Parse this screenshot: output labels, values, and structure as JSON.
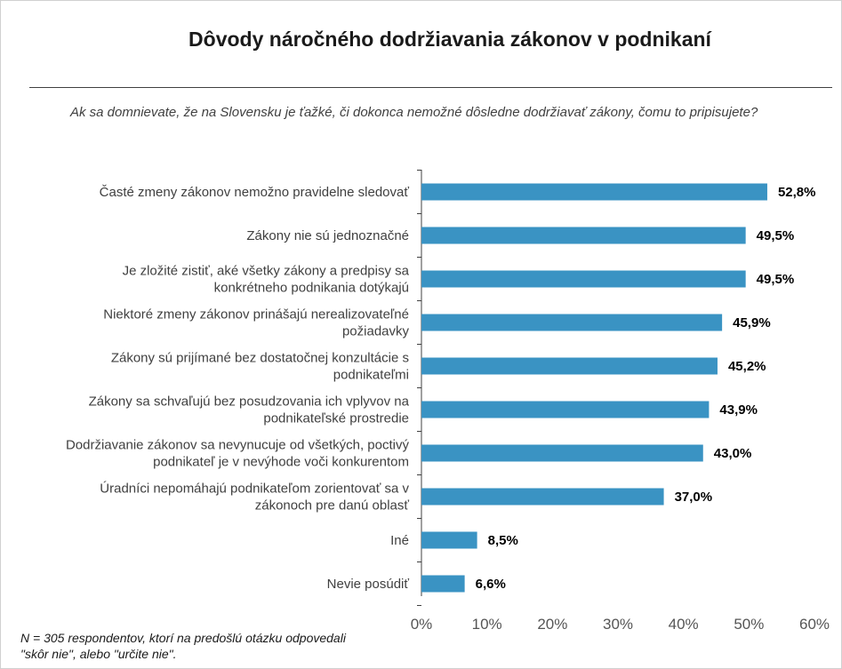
{
  "title": "Dôvody náročného dodržiavania zákonov v podnikaní",
  "subtitle": "Ak sa domnievate, že na Slovensku je ťažké, či dokonca nemožné dôsledne dodržiavať zákony, čomu to pripisujete?",
  "footnote": "N = 305 respondentov, ktorí na predošlú otázku odpovedali \"skôr nie\", alebo \"určite nie\".",
  "colors": {
    "bar": "#3a93c3",
    "axis": "#404040"
  },
  "chart_data": {
    "type": "bar",
    "orientation": "horizontal",
    "categories": [
      [
        "Časté zmeny zákonov nemožno pravidelne sledovať"
      ],
      [
        "Zákony nie sú jednoznačné"
      ],
      [
        "Je zložité zistiť, aké všetky zákony a predpisy sa",
        "konkrétneho podnikania dotýkajú"
      ],
      [
        "Niektoré zmeny zákonov prinášajú nerealizovateľné",
        "požiadavky"
      ],
      [
        "Zákony sú prijímané bez dostatočnej konzultácie s",
        "podnikateľmi"
      ],
      [
        "Zákony sa schvaľujú bez posudzovania ich vplyvov na",
        "podnikateľské prostredie"
      ],
      [
        "Dodržiavanie zákonov sa nevynucuje od všetkých, poctivý",
        "podnikateľ je v nevýhode voči konkurentom"
      ],
      [
        "Úradníci nepomáhajú podnikateľom zorientovať sa v",
        "zákonoch pre danú oblasť"
      ],
      [
        "Iné"
      ],
      [
        "Nevie posúdiť"
      ]
    ],
    "values": [
      52.8,
      49.5,
      49.5,
      45.9,
      45.2,
      43.9,
      43.0,
      37.0,
      8.5,
      6.6
    ],
    "value_labels": [
      "52,8%",
      "49,5%",
      "49,5%",
      "45,9%",
      "45,2%",
      "43,9%",
      "43,0%",
      "37,0%",
      "8,5%",
      "6,6%"
    ],
    "xlim": [
      0,
      60
    ],
    "xticks": [
      0,
      10,
      20,
      30,
      40,
      50,
      60
    ],
    "xtick_labels": [
      "0%",
      "10%",
      "20%",
      "30%",
      "40%",
      "50%",
      "60%"
    ],
    "grid": false,
    "legend": "none"
  }
}
